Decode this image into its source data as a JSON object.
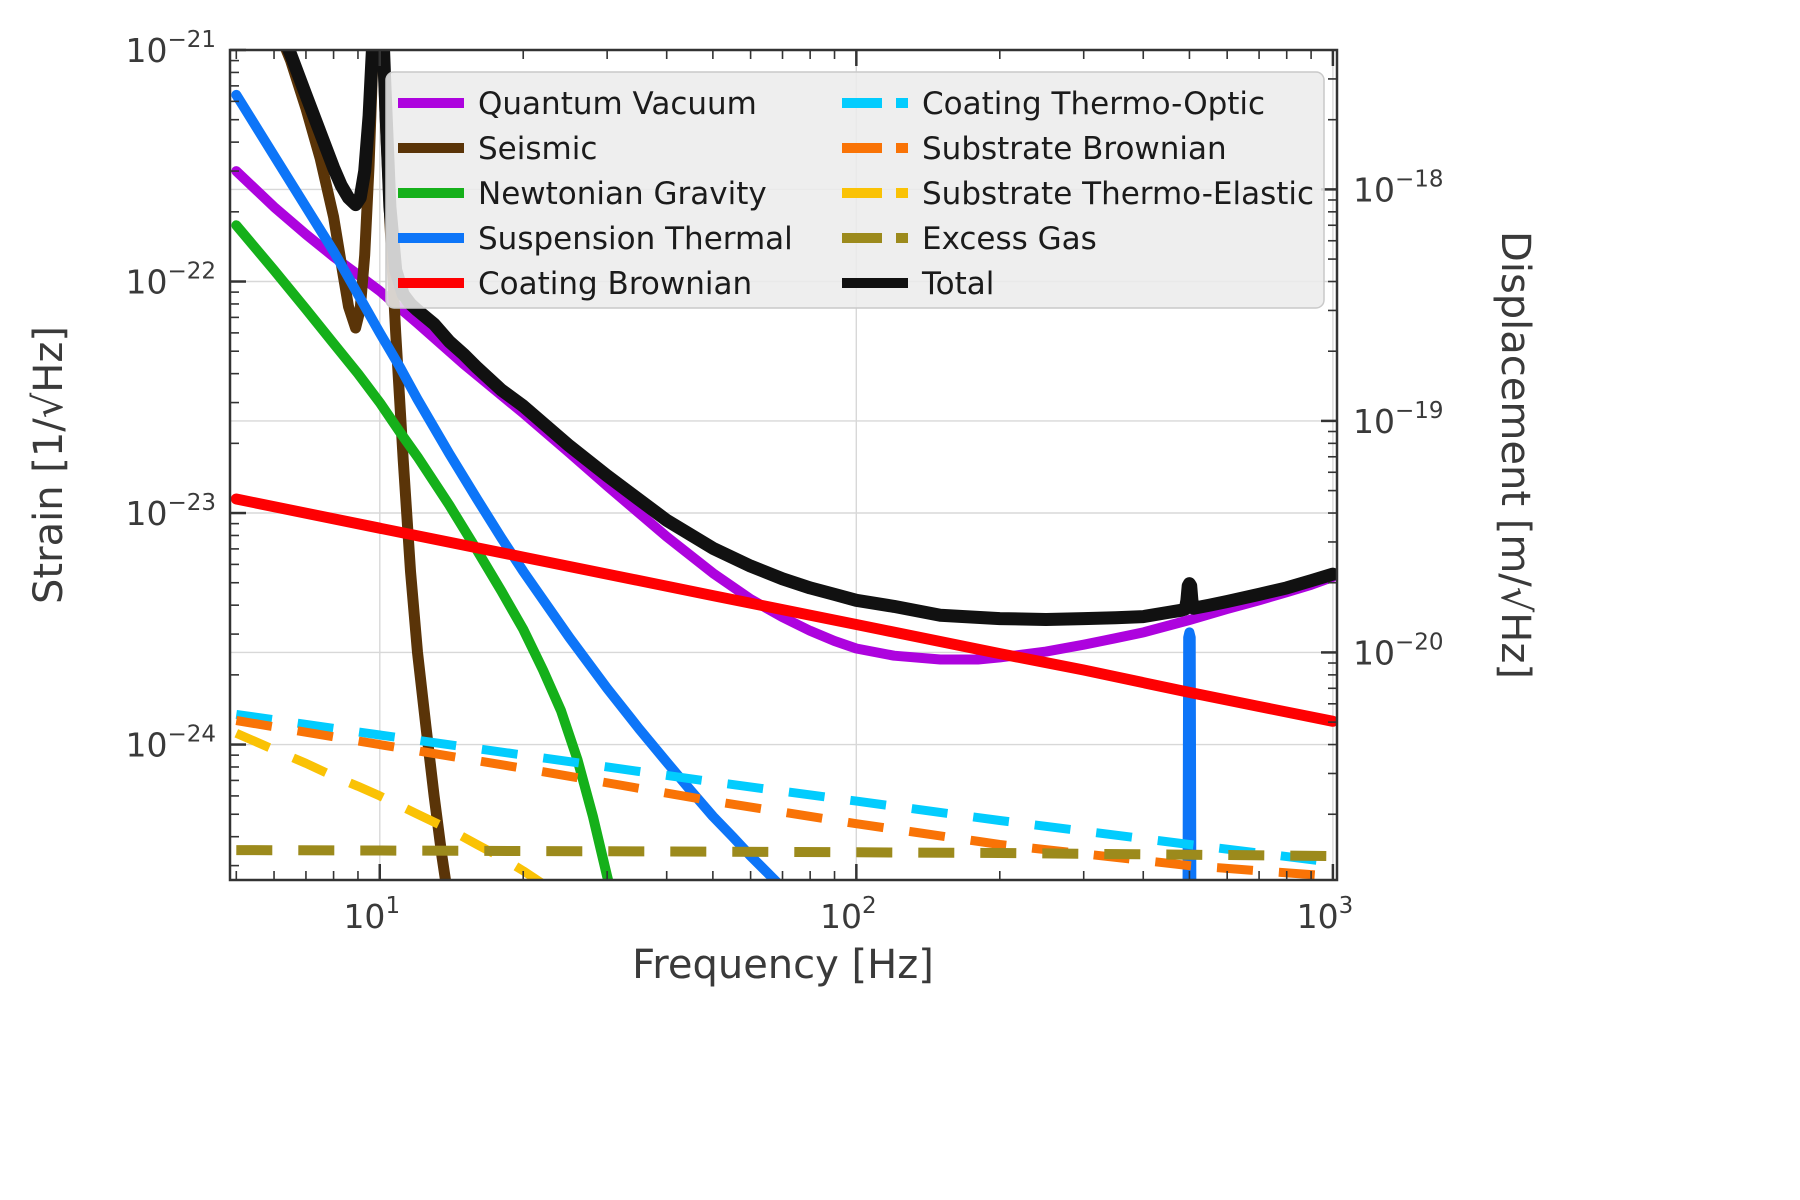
{
  "figure": {
    "background": "#ffffff",
    "text_color": "#3a3a3a",
    "spine_color": "#333333",
    "grid_color": "#d8d8d8",
    "legend_bg": "rgba(236,236,236,0.87)",
    "legend_border": "#c9c9c9"
  },
  "chart_data": {
    "type": "line",
    "title": "",
    "xlabel": "Frequency [Hz]",
    "ylabel_left": "Strain [1/√Hz]",
    "ylabel_right": "Displacement [m/√Hz]",
    "x_scale": "log",
    "y_scale": "log",
    "xlim": [
      4.85,
      1020
    ],
    "ylim": [
      2.6e-25,
      1e-21
    ],
    "right_axis_strain_to_displacement": 4000,
    "x_ticks": [
      10,
      100,
      1000
    ],
    "y_ticks": [
      1e-21,
      1e-22,
      1e-23,
      1e-24
    ],
    "y_ticks_right": [
      1e-18,
      1e-19,
      1e-20
    ],
    "legend_columns": 2,
    "grid": true,
    "series": [
      {
        "name": "Quantum Vacuum",
        "color": "#ad03de",
        "style": "solid",
        "width": 10,
        "points": [
          [
            5,
            3e-22
          ],
          [
            6,
            2.1e-22
          ],
          [
            7,
            1.6e-22
          ],
          [
            8,
            1.28e-22
          ],
          [
            9,
            1.07e-22
          ],
          [
            10,
            9.1e-23
          ],
          [
            12,
            6.6e-23
          ],
          [
            15,
            4.4e-23
          ],
          [
            20,
            2.7e-23
          ],
          [
            25,
            1.82e-23
          ],
          [
            30,
            1.31e-23
          ],
          [
            40,
            7.9e-24
          ],
          [
            50,
            5.5e-24
          ],
          [
            60,
            4.25e-24
          ],
          [
            70,
            3.55e-24
          ],
          [
            80,
            3.1e-24
          ],
          [
            90,
            2.8e-24
          ],
          [
            100,
            2.6e-24
          ],
          [
            120,
            2.42e-24
          ],
          [
            150,
            2.33e-24
          ],
          [
            180,
            2.33e-24
          ],
          [
            200,
            2.38e-24
          ],
          [
            250,
            2.52e-24
          ],
          [
            300,
            2.7e-24
          ],
          [
            350,
            2.88e-24
          ],
          [
            400,
            3.05e-24
          ],
          [
            500,
            3.45e-24
          ],
          [
            600,
            3.85e-24
          ],
          [
            700,
            4.2e-24
          ],
          [
            800,
            4.55e-24
          ],
          [
            900,
            4.9e-24
          ],
          [
            1000,
            5.3e-24
          ]
        ]
      },
      {
        "name": "Seismic",
        "color": "#5a3408",
        "style": "solid",
        "width": 11,
        "points": [
          [
            5,
            3e-21
          ],
          [
            5.5,
            2e-21
          ],
          [
            6,
            1.35e-21
          ],
          [
            6.5,
            9e-22
          ],
          [
            7,
            5.6e-22
          ],
          [
            7.5,
            3.4e-22
          ],
          [
            8,
            1.9e-22
          ],
          [
            8.3,
            1.2e-22
          ],
          [
            8.6,
            7.8e-23
          ],
          [
            8.9,
            6.3e-23
          ],
          [
            9.1,
            7.6e-23
          ],
          [
            9.3,
            1.3e-22
          ],
          [
            9.5,
            3.2e-22
          ],
          [
            9.65,
            8e-22
          ],
          [
            9.8,
            2e-21
          ],
          [
            9.95,
            3.2e-21
          ],
          [
            10.1,
            1.4e-21
          ],
          [
            10.25,
            5.5e-22
          ],
          [
            10.5,
            1.8e-22
          ],
          [
            10.8,
            6e-23
          ],
          [
            11.2,
            1.7e-23
          ],
          [
            11.6,
            5.6e-24
          ],
          [
            12,
            2.5e-24
          ],
          [
            12.5,
            1.2e-24
          ],
          [
            13,
            6e-25
          ],
          [
            13.5,
            3.3e-25
          ],
          [
            14,
            2e-25
          ],
          [
            14.5,
            1.3e-25
          ]
        ]
      },
      {
        "name": "Newtonian Gravity",
        "color": "#15b01a",
        "style": "solid",
        "width": 10,
        "points": [
          [
            5,
            1.75e-22
          ],
          [
            6,
            1.12e-22
          ],
          [
            7,
            7.6e-23
          ],
          [
            8,
            5.4e-23
          ],
          [
            9,
            4e-23
          ],
          [
            10,
            3e-23
          ],
          [
            11,
            2.25e-23
          ],
          [
            12,
            1.75e-23
          ],
          [
            14,
            1.08e-23
          ],
          [
            16,
            6.9e-24
          ],
          [
            18,
            4.6e-24
          ],
          [
            20,
            3.15e-24
          ],
          [
            22,
            2.1e-24
          ],
          [
            24,
            1.4e-24
          ],
          [
            26,
            8.6e-25
          ],
          [
            28,
            4.9e-25
          ],
          [
            30,
            2.7e-25
          ],
          [
            32,
            1.6e-25
          ]
        ]
      },
      {
        "name": "Suspension Thermal",
        "color": "#0d75f8",
        "style": "solid",
        "width": 10,
        "points": [
          [
            5,
            6.4e-22
          ],
          [
            6,
            3.5e-22
          ],
          [
            7,
            2.1e-22
          ],
          [
            8,
            1.35e-22
          ],
          [
            9,
            8.8e-23
          ],
          [
            10,
            6e-23
          ],
          [
            11,
            4.3e-23
          ],
          [
            12,
            3.1e-23
          ],
          [
            14,
            1.8e-23
          ],
          [
            16,
            1.15e-23
          ],
          [
            18,
            7.8e-24
          ],
          [
            20,
            5.6e-24
          ],
          [
            25,
            2.9e-24
          ],
          [
            30,
            1.75e-24
          ],
          [
            35,
            1.17e-24
          ],
          [
            40,
            8.4e-25
          ],
          [
            45,
            6.3e-25
          ],
          [
            50,
            4.9e-25
          ],
          [
            55,
            4e-25
          ],
          [
            60,
            3.3e-25
          ],
          [
            65,
            2.8e-25
          ],
          [
            70,
            2.4e-25
          ],
          [
            80,
            1.8e-25
          ],
          [
            100,
            1.3e-25
          ],
          [
            460,
            1.1e-25
          ],
          [
            490,
            1.2e-25
          ],
          [
            495,
            1.4e-25
          ],
          [
            497,
            2.9e-24
          ],
          [
            500,
            3.05e-24
          ],
          [
            503,
            2.9e-24
          ],
          [
            505,
            1.4e-25
          ],
          [
            510,
            1.2e-25
          ],
          [
            1000,
            1e-25
          ]
        ]
      },
      {
        "name": "Coating Brownian",
        "color": "#fe0002",
        "style": "solid",
        "width": 11,
        "points": [
          [
            5,
            1.15e-23
          ],
          [
            10,
            8.6e-24
          ],
          [
            20,
            6.45e-24
          ],
          [
            50,
            4.4e-24
          ],
          [
            100,
            3.3e-24
          ],
          [
            200,
            2.47e-24
          ],
          [
            300,
            2.1e-24
          ],
          [
            500,
            1.68e-24
          ],
          [
            700,
            1.46e-24
          ],
          [
            1000,
            1.26e-24
          ]
        ]
      },
      {
        "name": "Coating Thermo-Optic",
        "color": "#02ccfe",
        "style": "dashed",
        "width": 9,
        "points": [
          [
            5,
            1.35e-24
          ],
          [
            10,
            1.1e-24
          ],
          [
            20,
            9e-25
          ],
          [
            50,
            6.9e-25
          ],
          [
            100,
            5.7e-25
          ],
          [
            200,
            4.7e-25
          ],
          [
            500,
            3.7e-25
          ],
          [
            1000,
            3.1e-25
          ]
        ]
      },
      {
        "name": "Substrate Brownian",
        "color": "#f97306",
        "style": "dashed",
        "width": 9,
        "points": [
          [
            5,
            1.27e-24
          ],
          [
            10,
            1e-24
          ],
          [
            20,
            7.9e-25
          ],
          [
            50,
            5.7e-25
          ],
          [
            100,
            4.55e-25
          ],
          [
            200,
            3.7e-25
          ],
          [
            500,
            3e-25
          ],
          [
            700,
            2.85e-25
          ],
          [
            1000,
            2.7e-25
          ]
        ]
      },
      {
        "name": "Substrate Thermo-Elastic",
        "color": "#fac205",
        "style": "dashed",
        "width": 9,
        "points": [
          [
            5,
            1.12e-24
          ],
          [
            6,
            9.5e-25
          ],
          [
            7,
            8.3e-25
          ],
          [
            8,
            7.3e-25
          ],
          [
            9,
            6.6e-25
          ],
          [
            10,
            6e-25
          ],
          [
            12,
            5e-25
          ],
          [
            14,
            4.3e-25
          ],
          [
            16,
            3.7e-25
          ],
          [
            18,
            3.25e-25
          ],
          [
            20,
            2.85e-25
          ],
          [
            22,
            2.5e-25
          ],
          [
            24,
            2.2e-25
          ]
        ]
      },
      {
        "name": "Excess Gas",
        "color": "#9c8a1c",
        "style": "dashed",
        "width": 10,
        "points": [
          [
            5,
            3.5e-25
          ],
          [
            50,
            3.45e-25
          ],
          [
            200,
            3.4e-25
          ],
          [
            1000,
            3.3e-25
          ]
        ]
      },
      {
        "name": "Total",
        "color": "#111111",
        "style": "solid",
        "width": 13,
        "points": [
          [
            5,
            2.3e-21
          ],
          [
            5.5,
            1.8e-21
          ],
          [
            6,
            1.4e-21
          ],
          [
            6.5,
            9.6e-22
          ],
          [
            7,
            6.4e-22
          ],
          [
            7.5,
            4.4e-22
          ],
          [
            8,
            3.1e-22
          ],
          [
            8.3,
            2.6e-22
          ],
          [
            8.6,
            2.3e-22
          ],
          [
            8.9,
            2.15e-22
          ],
          [
            9.1,
            2.3e-22
          ],
          [
            9.3,
            3e-22
          ],
          [
            9.5,
            5.2e-22
          ],
          [
            9.65,
            1e-21
          ],
          [
            9.8,
            2.2e-21
          ],
          [
            9.95,
            3.4e-21
          ],
          [
            10.1,
            1.6e-21
          ],
          [
            10.25,
            7e-22
          ],
          [
            10.5,
            2.1e-22
          ],
          [
            10.8,
            1.12e-22
          ],
          [
            11.2,
            8.8e-23
          ],
          [
            11.6,
            8e-23
          ],
          [
            12,
            7.5e-23
          ],
          [
            13,
            6.55e-23
          ],
          [
            14,
            5.5e-23
          ],
          [
            15,
            4.85e-23
          ],
          [
            16,
            4.25e-23
          ],
          [
            18,
            3.4e-23
          ],
          [
            20,
            2.9e-23
          ],
          [
            25,
            1.95e-23
          ],
          [
            30,
            1.45e-23
          ],
          [
            40,
            9.3e-24
          ],
          [
            50,
            7.05e-24
          ],
          [
            60,
            5.9e-24
          ],
          [
            70,
            5.2e-24
          ],
          [
            80,
            4.75e-24
          ],
          [
            90,
            4.45e-24
          ],
          [
            100,
            4.2e-24
          ],
          [
            120,
            3.95e-24
          ],
          [
            150,
            3.62e-24
          ],
          [
            200,
            3.5e-24
          ],
          [
            250,
            3.47e-24
          ],
          [
            300,
            3.5e-24
          ],
          [
            350,
            3.53e-24
          ],
          [
            400,
            3.57e-24
          ],
          [
            450,
            3.72e-24
          ],
          [
            480,
            3.8e-24
          ],
          [
            490,
            3.85e-24
          ],
          [
            494,
            4.2e-24
          ],
          [
            497,
            4.85e-24
          ],
          [
            500,
            4.95e-24
          ],
          [
            503,
            4.85e-24
          ],
          [
            506,
            4.2e-24
          ],
          [
            510,
            3.88e-24
          ],
          [
            550,
            4e-24
          ],
          [
            600,
            4.15e-24
          ],
          [
            700,
            4.45e-24
          ],
          [
            800,
            4.75e-24
          ],
          [
            900,
            5.1e-24
          ],
          [
            1000,
            5.45e-24
          ]
        ]
      }
    ]
  }
}
